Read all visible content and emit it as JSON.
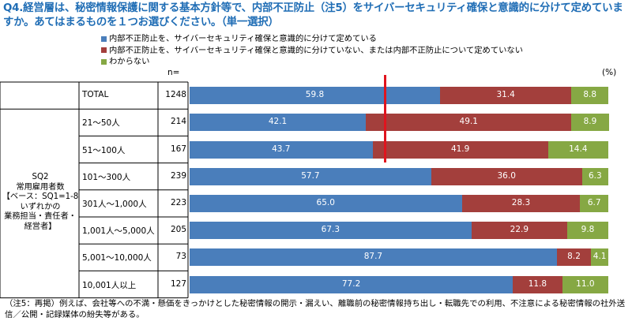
{
  "title": "Q4.経営層は、秘密情報保護に関する基本方針等で、内部不正防止（注5）をサイバーセキュリティ確保と意識的に分けて定めていますか。あてはまるものを１つお選びください。（単一選択）",
  "legend": [
    {
      "label": "内部不正防止を、サイバーセキュリティ確保と意識的に分けて定めている",
      "color": "#4a7ebb"
    },
    {
      "label": "内部不正防止を、サイバーセキュリティ確保と意識的に分けていない、または内部不正防止について定めていない",
      "color": "#a33f3c"
    },
    {
      "label": "わからない",
      "color": "#86a844"
    }
  ],
  "n_header": "n=",
  "pct_header": "(%)",
  "group_label": "SQ2\n常用雇用者数\n【ベース：SQ1=1-8\nいずれかの\n業務担当・責任者・\n経営者】",
  "note": "（注5：再掲）例えば、会社等への不満・懸価をきっかけとした秘密情報の開示・漏えい、離職前の秘密情報持ち出し・転職先での利用、不注意による秘密情報の社外送信／公開・記録媒体の紛失等がある。",
  "chart_data": {
    "type": "bar",
    "orientation": "horizontal",
    "stacked": true,
    "xlim": [
      0,
      100
    ],
    "categories": [
      "TOTAL",
      "21～50人",
      "51～100人",
      "101～300人",
      "301人～1,000人",
      "1,001人～5,000人",
      "5,001～10,000人",
      "10,001人以上"
    ],
    "n": [
      1248,
      214,
      167,
      239,
      223,
      205,
      73,
      127
    ],
    "series": [
      {
        "name": "内部不正防止を、サイバーセキュリティ確保と意識的に分けて定めている",
        "values": [
          59.8,
          42.1,
          43.7,
          57.7,
          65.0,
          67.3,
          87.7,
          77.2
        ]
      },
      {
        "name": "内部不正防止を、サイバーセキュリティ確保と意識的に分けていない、または内部不正防止について定めていない",
        "values": [
          31.4,
          49.1,
          41.9,
          36.0,
          28.3,
          22.9,
          8.2,
          11.8
        ]
      },
      {
        "name": "わからない",
        "values": [
          8.8,
          8.9,
          14.4,
          6.3,
          6.7,
          9.8,
          4.1,
          11.0
        ]
      }
    ],
    "value_labels": [
      [
        "59.8",
        "31.4",
        "8.8"
      ],
      [
        "42.1",
        "49.1",
        "8.9"
      ],
      [
        "43.7",
        "41.9",
        "14.4"
      ],
      [
        "57.7",
        "36.0",
        "6.3"
      ],
      [
        "65.0",
        "28.3",
        "6.7"
      ],
      [
        "67.3",
        "22.9",
        "9.8"
      ],
      [
        "87.7",
        "8.2",
        "4.1"
      ],
      [
        "77.2",
        "11.8",
        "11.0"
      ]
    ],
    "n_labels": [
      "1248",
      "214",
      "167",
      "239",
      "223",
      "205",
      "73",
      "127"
    ]
  }
}
